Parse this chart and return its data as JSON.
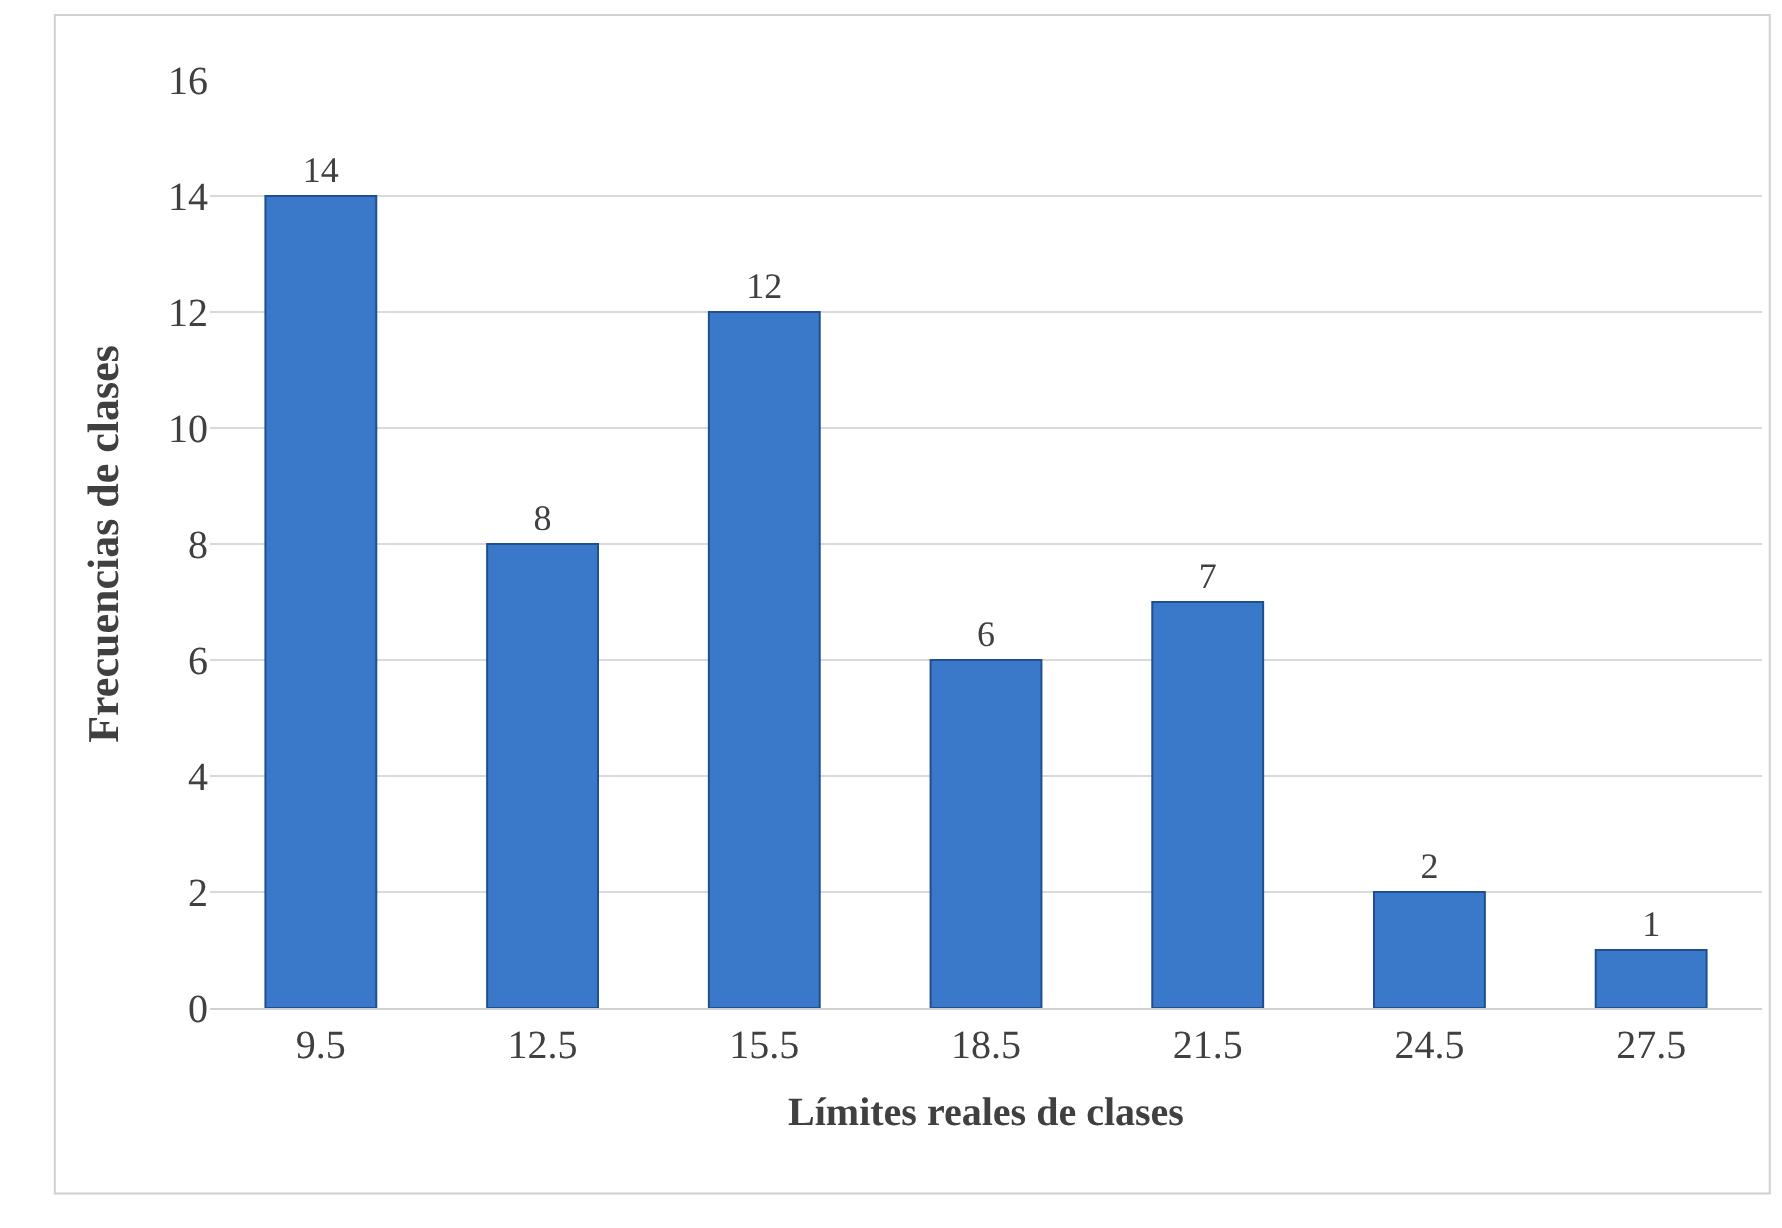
{
  "chart_data": {
    "type": "bar",
    "xlabel": "Límites reales de clases",
    "ylabel": "Frecuencias de clases",
    "categories": [
      "9.5",
      "12.5",
      "15.5",
      "18.5",
      "21.5",
      "24.5",
      "27.5"
    ],
    "values": [
      14,
      8,
      12,
      6,
      7,
      2,
      1
    ],
    "color": "#3a78c9",
    "ylim": [
      0,
      16
    ],
    "yticks": [
      0,
      2,
      4,
      6,
      8,
      10,
      12,
      14,
      16
    ],
    "grid": "y",
    "data_labels": true
  }
}
